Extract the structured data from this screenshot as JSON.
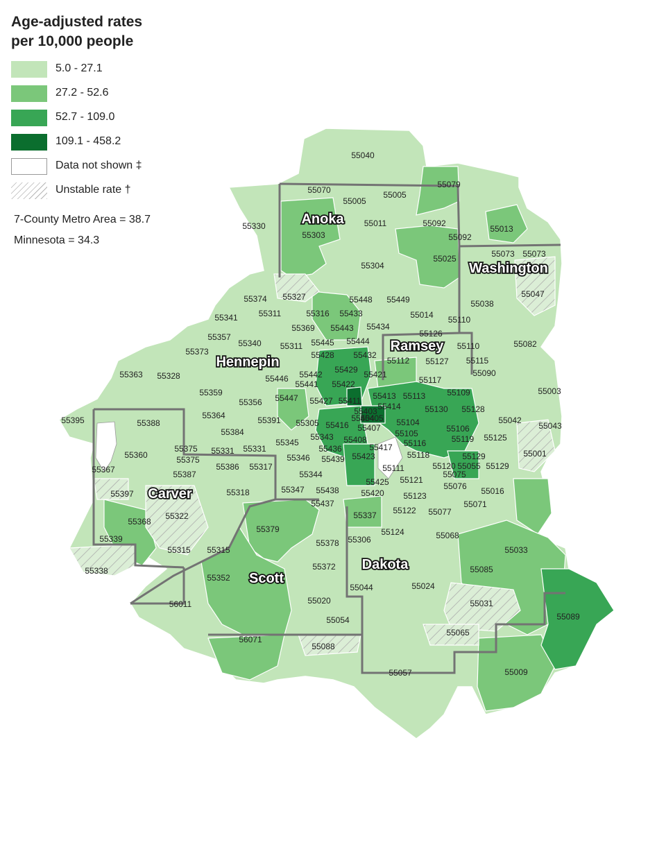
{
  "legend": {
    "title_line1": "Age-adjusted rates",
    "title_line2": "per 10,000 people",
    "items": [
      {
        "label": "5.0 - 27.1",
        "color": "#c2e5b9"
      },
      {
        "label": "27.2 - 52.6",
        "color": "#7bc77a"
      },
      {
        "label": "52.7 - 109.0",
        "color": "#38a655"
      },
      {
        "label": "109.1 - 458.2",
        "color": "#0b6e2e"
      },
      {
        "label": "Data not shown ‡",
        "color": "#ffffff"
      },
      {
        "label": "Unstable rate †",
        "color": "hatch"
      }
    ],
    "metro_stat": "7-County Metro Area = 38.7",
    "state_stat": "Minnesota = 34.3"
  },
  "counties": [
    "Anoka",
    "Washington",
    "Ramsey",
    "Hennepin",
    "Carver",
    "Scott",
    "Dakota"
  ],
  "zip_labels": [
    "55040",
    "55070",
    "55005",
    "55005",
    "55079",
    "55330",
    "55011",
    "55092",
    "55013",
    "55303",
    "55092",
    "55073",
    "55073",
    "55304",
    "55025",
    "55374",
    "55327",
    "55448",
    "55449",
    "55038",
    "55047",
    "55341",
    "55311",
    "55316",
    "55433",
    "55014",
    "55110",
    "55369",
    "55443",
    "55434",
    "55126",
    "55357",
    "55340",
    "55311",
    "55445",
    "55444",
    "55110",
    "55082",
    "55373",
    "55428",
    "55432",
    "55112",
    "55127",
    "55115",
    "55429",
    "55421",
    "55090",
    "55363",
    "55328",
    "55446",
    "55442",
    "55441",
    "55422",
    "55117",
    "55359",
    "55447",
    "55427",
    "55411",
    "55413",
    "55113",
    "55109",
    "55003",
    "55356",
    "55414",
    "55403",
    "55130",
    "55128",
    "55364",
    "55388",
    "55391",
    "55405",
    "55404",
    "55042",
    "55043",
    "55305",
    "55416",
    "55407",
    "55104",
    "55106",
    "55384",
    "55343",
    "55408",
    "55105",
    "55119",
    "55125",
    "55395",
    "55345",
    "55436",
    "55116",
    "55001",
    "55360",
    "55375",
    "55331",
    "55331",
    "55417",
    "55118",
    "55129",
    "55375",
    "55346",
    "55439",
    "55423",
    "55120",
    "55055",
    "55129",
    "55367",
    "55386",
    "55317",
    "55111",
    "55075",
    "55387",
    "55344",
    "55121",
    "55076",
    "55425",
    "55016",
    "55397",
    "55318",
    "55347",
    "55438",
    "55420",
    "55123",
    "55071",
    "55322",
    "55437",
    "55337",
    "55122",
    "55077",
    "55368",
    "55379",
    "55306",
    "55124",
    "55068",
    "55339",
    "55378",
    "55033",
    "55315",
    "55315",
    "55372",
    "55338",
    "55085",
    "55044",
    "55024",
    "55352",
    "55031",
    "56011",
    "55020",
    "55089",
    "55054",
    "55065",
    "56071",
    "55088",
    "55009",
    "55057"
  ]
}
